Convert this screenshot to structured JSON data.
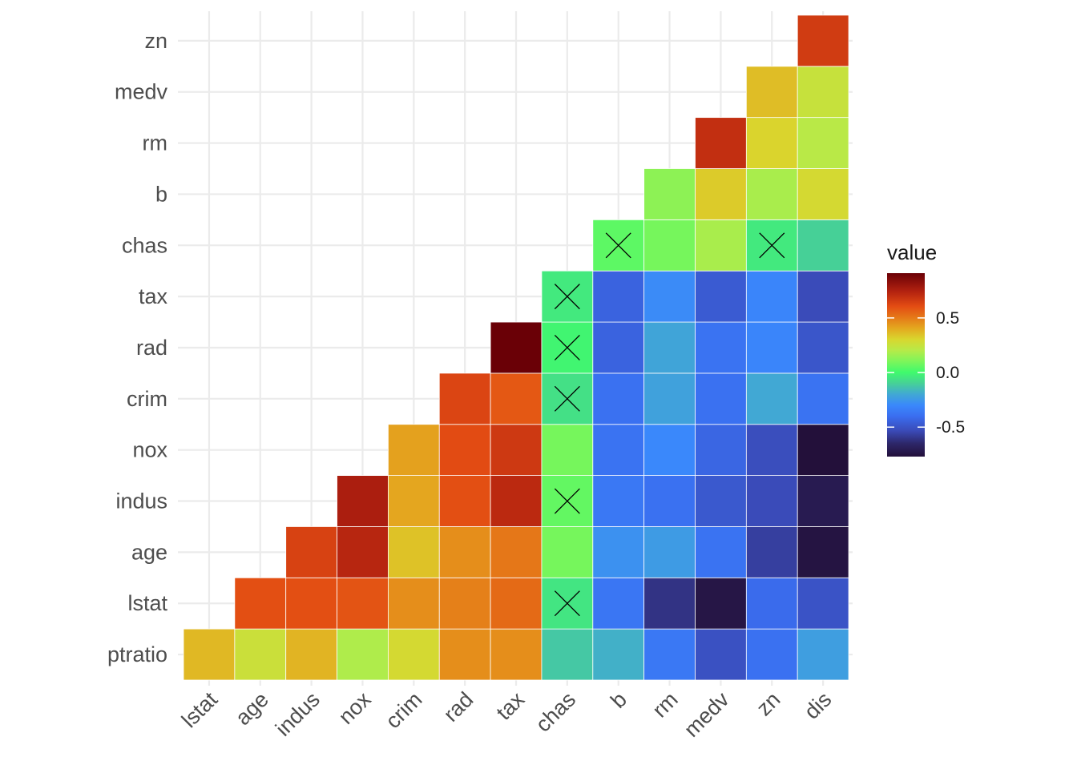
{
  "chart_data": {
    "type": "heatmap",
    "title": "",
    "xlabel": "",
    "ylabel": "",
    "x_categories": [
      "lstat",
      "age",
      "indus",
      "nox",
      "crim",
      "rad",
      "tax",
      "chas",
      "b",
      "rm",
      "medv",
      "zn",
      "dis"
    ],
    "y_categories": [
      "ptratio",
      "lstat",
      "age",
      "indus",
      "nox",
      "crim",
      "rad",
      "tax",
      "chas",
      "b",
      "rm",
      "medv",
      "zn"
    ],
    "color_scale": {
      "name": "value",
      "min": -0.77,
      "max": 0.91,
      "ticks": [
        0.5,
        0.0,
        -0.5
      ],
      "tick_labels": [
        "0.5",
        "0.0",
        "-0.5"
      ],
      "palette": "turbo"
    },
    "cells": [
      {
        "x": "lstat",
        "y": "ptratio",
        "value": 0.37
      },
      {
        "x": "age",
        "y": "ptratio",
        "value": 0.26
      },
      {
        "x": "indus",
        "y": "ptratio",
        "value": 0.38
      },
      {
        "x": "nox",
        "y": "ptratio",
        "value": 0.19
      },
      {
        "x": "crim",
        "y": "ptratio",
        "value": 0.29
      },
      {
        "x": "rad",
        "y": "ptratio",
        "value": 0.46
      },
      {
        "x": "tax",
        "y": "ptratio",
        "value": 0.46
      },
      {
        "x": "chas",
        "y": "ptratio",
        "value": -0.12
      },
      {
        "x": "b",
        "y": "ptratio",
        "value": -0.18
      },
      {
        "x": "rm",
        "y": "ptratio",
        "value": -0.36
      },
      {
        "x": "medv",
        "y": "ptratio",
        "value": -0.51
      },
      {
        "x": "zn",
        "y": "ptratio",
        "value": -0.39
      },
      {
        "x": "dis",
        "y": "ptratio",
        "value": -0.23
      },
      {
        "x": "age",
        "y": "lstat",
        "value": 0.6
      },
      {
        "x": "indus",
        "y": "lstat",
        "value": 0.6
      },
      {
        "x": "nox",
        "y": "lstat",
        "value": 0.59
      },
      {
        "x": "crim",
        "y": "lstat",
        "value": 0.46
      },
      {
        "x": "rad",
        "y": "lstat",
        "value": 0.49
      },
      {
        "x": "tax",
        "y": "lstat",
        "value": 0.54
      },
      {
        "x": "chas",
        "y": "lstat",
        "value": -0.05,
        "nonsignificant": true
      },
      {
        "x": "b",
        "y": "lstat",
        "value": -0.37
      },
      {
        "x": "rm",
        "y": "lstat",
        "value": -0.61
      },
      {
        "x": "medv",
        "y": "lstat",
        "value": -0.74
      },
      {
        "x": "zn",
        "y": "lstat",
        "value": -0.41
      },
      {
        "x": "dis",
        "y": "lstat",
        "value": -0.5
      },
      {
        "x": "indus",
        "y": "age",
        "value": 0.64
      },
      {
        "x": "nox",
        "y": "age",
        "value": 0.73
      },
      {
        "x": "crim",
        "y": "age",
        "value": 0.35
      },
      {
        "x": "rad",
        "y": "age",
        "value": 0.46
      },
      {
        "x": "tax",
        "y": "age",
        "value": 0.51
      },
      {
        "x": "chas",
        "y": "age",
        "value": 0.09
      },
      {
        "x": "b",
        "y": "age",
        "value": -0.27
      },
      {
        "x": "rm",
        "y": "age",
        "value": -0.24
      },
      {
        "x": "medv",
        "y": "age",
        "value": -0.38
      },
      {
        "x": "zn",
        "y": "age",
        "value": -0.57
      },
      {
        "x": "dis",
        "y": "age",
        "value": -0.75
      },
      {
        "x": "nox",
        "y": "indus",
        "value": 0.76
      },
      {
        "x": "crim",
        "y": "indus",
        "value": 0.41
      },
      {
        "x": "rad",
        "y": "indus",
        "value": 0.6
      },
      {
        "x": "tax",
        "y": "indus",
        "value": 0.72
      },
      {
        "x": "chas",
        "y": "indus",
        "value": 0.06,
        "nonsignificant": true
      },
      {
        "x": "b",
        "y": "indus",
        "value": -0.36
      },
      {
        "x": "rm",
        "y": "indus",
        "value": -0.39
      },
      {
        "x": "medv",
        "y": "indus",
        "value": -0.48
      },
      {
        "x": "zn",
        "y": "indus",
        "value": -0.53
      },
      {
        "x": "dis",
        "y": "indus",
        "value": -0.71
      },
      {
        "x": "crim",
        "y": "nox",
        "value": 0.42
      },
      {
        "x": "rad",
        "y": "nox",
        "value": 0.61
      },
      {
        "x": "tax",
        "y": "nox",
        "value": 0.67
      },
      {
        "x": "chas",
        "y": "nox",
        "value": 0.09
      },
      {
        "x": "b",
        "y": "nox",
        "value": -0.38
      },
      {
        "x": "rm",
        "y": "nox",
        "value": -0.3
      },
      {
        "x": "medv",
        "y": "nox",
        "value": -0.43
      },
      {
        "x": "zn",
        "y": "nox",
        "value": -0.52
      },
      {
        "x": "dis",
        "y": "nox",
        "value": -0.77
      },
      {
        "x": "rad",
        "y": "crim",
        "value": 0.63
      },
      {
        "x": "tax",
        "y": "crim",
        "value": 0.58
      },
      {
        "x": "chas",
        "y": "crim",
        "value": -0.06,
        "nonsignificant": true
      },
      {
        "x": "b",
        "y": "crim",
        "value": -0.39
      },
      {
        "x": "rm",
        "y": "crim",
        "value": -0.22
      },
      {
        "x": "medv",
        "y": "crim",
        "value": -0.39
      },
      {
        "x": "zn",
        "y": "crim",
        "value": -0.2
      },
      {
        "x": "dis",
        "y": "crim",
        "value": -0.38
      },
      {
        "x": "tax",
        "y": "rad",
        "value": 0.91
      },
      {
        "x": "chas",
        "y": "rad",
        "value": -0.01,
        "nonsignificant": true
      },
      {
        "x": "b",
        "y": "rad",
        "value": -0.44
      },
      {
        "x": "rm",
        "y": "rad",
        "value": -0.21
      },
      {
        "x": "medv",
        "y": "rad",
        "value": -0.38
      },
      {
        "x": "zn",
        "y": "rad",
        "value": -0.31
      },
      {
        "x": "dis",
        "y": "rad",
        "value": -0.49
      },
      {
        "x": "chas",
        "y": "tax",
        "value": -0.04,
        "nonsignificant": true
      },
      {
        "x": "b",
        "y": "tax",
        "value": -0.44
      },
      {
        "x": "rm",
        "y": "tax",
        "value": -0.29
      },
      {
        "x": "medv",
        "y": "tax",
        "value": -0.47
      },
      {
        "x": "zn",
        "y": "tax",
        "value": -0.31
      },
      {
        "x": "dis",
        "y": "tax",
        "value": -0.53
      },
      {
        "x": "b",
        "y": "chas",
        "value": 0.05,
        "nonsignificant": true
      },
      {
        "x": "rm",
        "y": "chas",
        "value": 0.09
      },
      {
        "x": "medv",
        "y": "chas",
        "value": 0.18
      },
      {
        "x": "zn",
        "y": "chas",
        "value": -0.04,
        "nonsignificant": true
      },
      {
        "x": "dis",
        "y": "chas",
        "value": -0.1
      },
      {
        "x": "rm",
        "y": "b",
        "value": 0.13
      },
      {
        "x": "medv",
        "y": "b",
        "value": 0.33
      },
      {
        "x": "zn",
        "y": "b",
        "value": 0.18
      },
      {
        "x": "dis",
        "y": "b",
        "value": 0.29
      },
      {
        "x": "medv",
        "y": "rm",
        "value": 0.7
      },
      {
        "x": "zn",
        "y": "rm",
        "value": 0.31
      },
      {
        "x": "dis",
        "y": "rm",
        "value": 0.21
      },
      {
        "x": "zn",
        "y": "medv",
        "value": 0.36
      },
      {
        "x": "dis",
        "y": "medv",
        "value": 0.25
      },
      {
        "x": "dis",
        "y": "zn",
        "value": 0.66
      }
    ]
  }
}
